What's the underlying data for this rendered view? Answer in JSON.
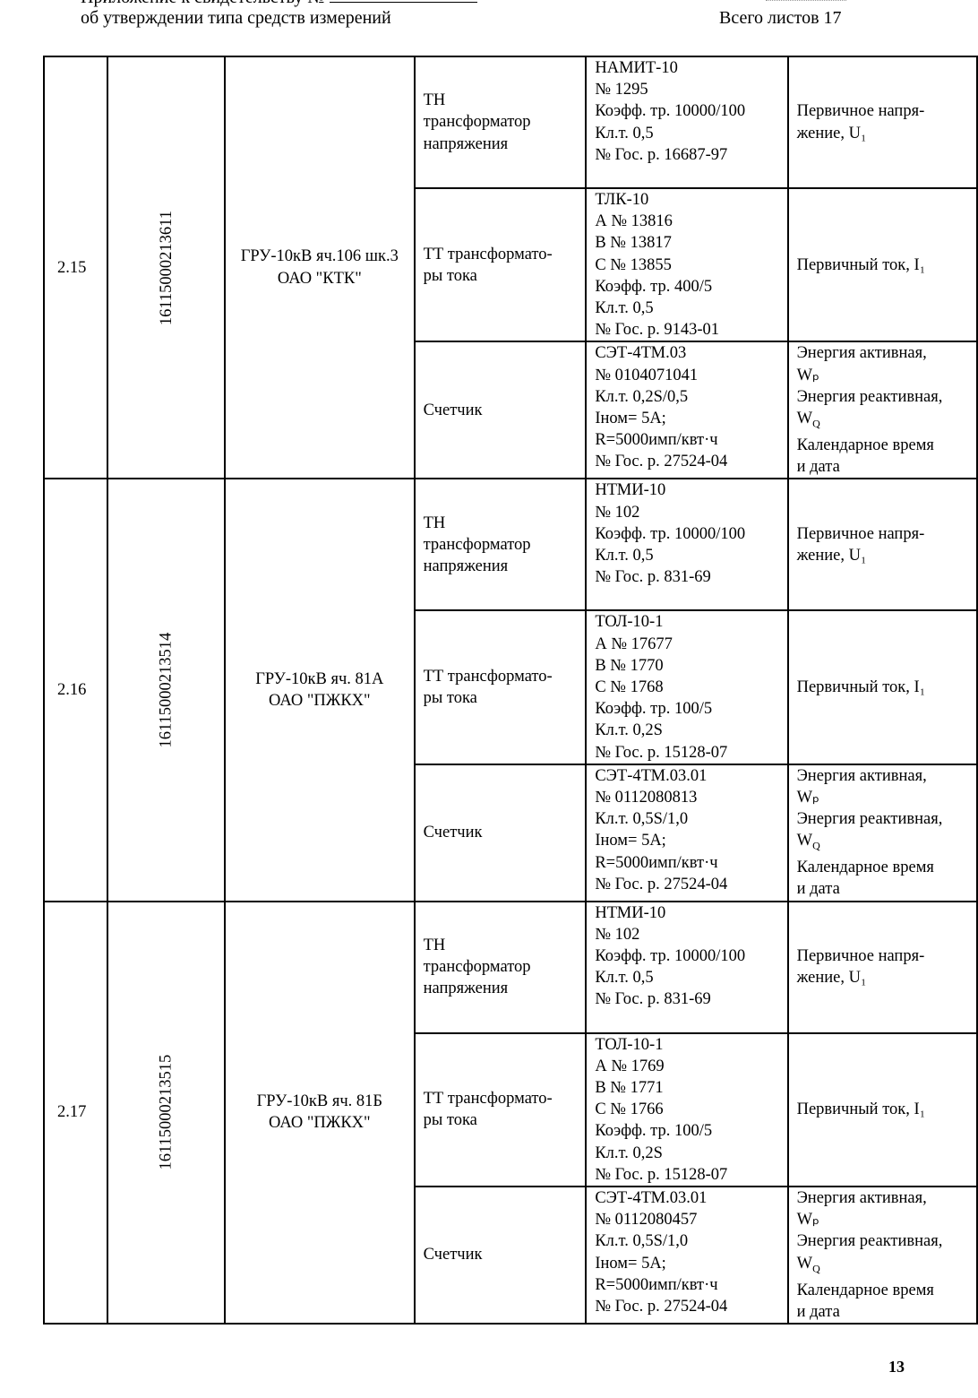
{
  "header": {
    "top_line": "Приложение к свидетельству №",
    "left": "об утверждении типа средств измерений",
    "right": "Всего листов 17"
  },
  "groups": [
    {
      "num": "2.15",
      "code": "16115000213611",
      "location": [
        "ГРУ-10кВ яч.106 шк.3",
        "ОАО \"КТК\""
      ],
      "rows": [
        {
          "type": [
            "ТН",
            "трансформатор",
            "напряжения"
          ],
          "details": [
            "НАМИТ-10",
            "№ 1295",
            "Коэфф. тр. 10000/100",
            "Кл.т. 0,5",
            "№ Гос. р. 16687-97"
          ],
          "measure": [
            "Первичное напря-",
            "жение, U₁"
          ]
        },
        {
          "type": [
            "ТТ трансформато-",
            "ры тока"
          ],
          "details": [
            "ТЛК-10",
            "А № 13816",
            "В № 13817",
            "С № 13855",
            "Коэфф. тр. 400/5",
            "Кл.т. 0,5",
            "№ Гос. р. 9143-01"
          ],
          "measure": [
            "Первичный ток, I₁"
          ]
        },
        {
          "type": [
            "Счетчик"
          ],
          "details": [
            "СЭТ-4ТМ.03",
            "№ 0104071041",
            "Кл.т. 0,2S/0,5",
            "Iном= 5А;",
            "R=5000имп/квт·ч",
            "№ Гос. р. 27524-04"
          ],
          "measure": [
            "Энергия активная,",
            "Wₚ",
            "Энергия реактивная,",
            "W_Q",
            "Календарное время",
            "и дата"
          ]
        }
      ]
    },
    {
      "num": "2.16",
      "code": "16115000213514",
      "location": [
        "ГРУ-10кВ яч. 81А",
        "ОАО \"ПЖКХ\""
      ],
      "rows": [
        {
          "type": [
            "ТН",
            "трансформатор",
            "напряжения"
          ],
          "details": [
            "НТМИ-10",
            "№ 102",
            "Коэфф. тр. 10000/100",
            "Кл.т. 0,5",
            "№ Гос. р. 831-69"
          ],
          "measure": [
            "Первичное напря-",
            "жение, U₁"
          ]
        },
        {
          "type": [
            "ТТ трансформато-",
            "ры тока"
          ],
          "details": [
            "ТОЛ-10-1",
            "А № 17677",
            "В № 1770",
            "С № 1768",
            "Коэфф. тр. 100/5",
            "Кл.т. 0,2S",
            "№ Гос. р. 15128-07"
          ],
          "measure": [
            "Первичный ток, I₁"
          ]
        },
        {
          "type": [
            "Счетчик"
          ],
          "details": [
            "СЭТ-4ТМ.03.01",
            "№ 0112080813",
            "Кл.т. 0,5S/1,0",
            "Iном= 5А;",
            "R=5000имп/квт·ч",
            "№ Гос. р. 27524-04"
          ],
          "measure": [
            "Энергия активная,",
            "Wₚ",
            "Энергия реактивная,",
            "W_Q",
            "Календарное время",
            "и дата"
          ]
        }
      ]
    },
    {
      "num": "2.17",
      "code": "16115000213515",
      "location": [
        "ГРУ-10кВ яч. 81Б",
        "ОАО \"ПЖКХ\""
      ],
      "rows": [
        {
          "type": [
            "ТН",
            "трансформатор",
            "напряжения"
          ],
          "details": [
            "НТМИ-10",
            "№ 102",
            "Коэфф. тр. 10000/100",
            "Кл.т. 0,5",
            "№ Гос. р. 831-69"
          ],
          "measure": [
            "Первичное напря-",
            "жение, U₁"
          ]
        },
        {
          "type": [
            "ТТ трансформато-",
            "ры тока"
          ],
          "details": [
            "ТОЛ-10-1",
            "А № 1769",
            "В № 1771",
            "С № 1766",
            "Коэфф. тр. 100/5",
            "Кл.т. 0,2S",
            "№ Гос. р. 15128-07"
          ],
          "measure": [
            "Первичный ток, I₁"
          ]
        },
        {
          "type": [
            "Счетчик"
          ],
          "details": [
            "СЭТ-4ТМ.03.01",
            "№ 0112080457",
            "Кл.т. 0,5S/1,0",
            "Iном= 5А;",
            "R=5000имп/квт·ч",
            "№ Гос. р. 27524-04"
          ],
          "measure": [
            "Энергия активная,",
            "Wₚ",
            "Энергия реактивная,",
            "W_Q",
            "Календарное время",
            "и дата"
          ]
        }
      ]
    }
  ],
  "page_number": "13"
}
